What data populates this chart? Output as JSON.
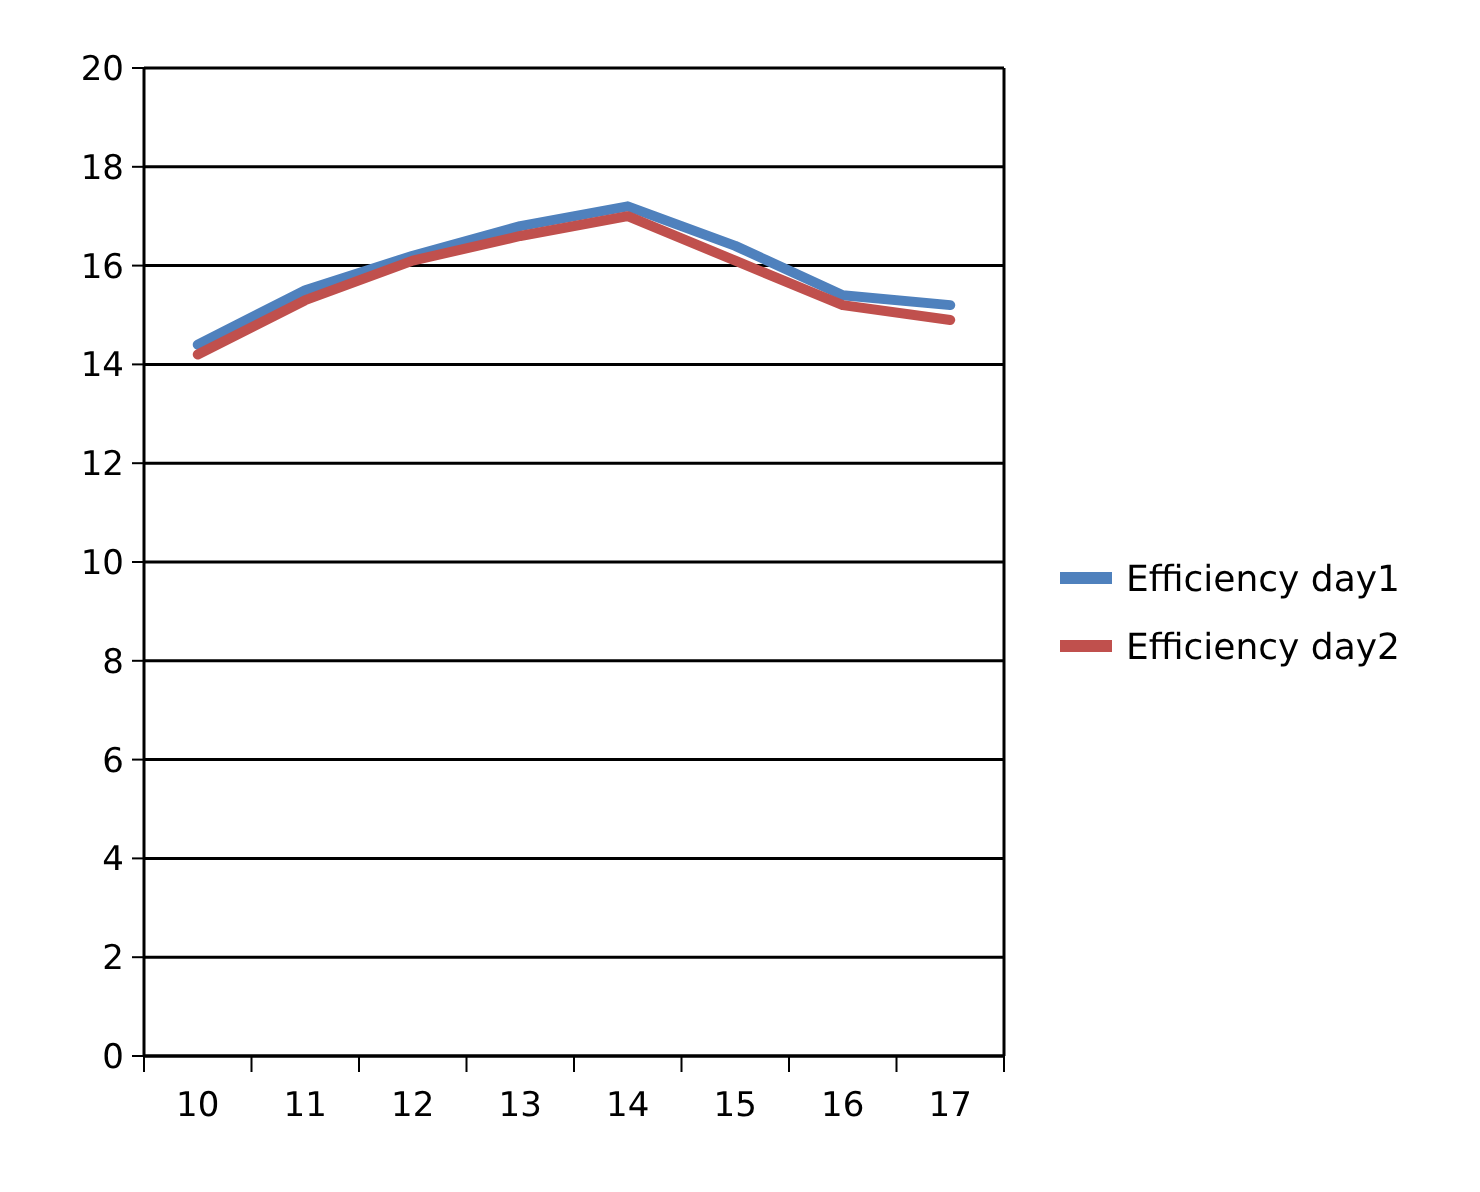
{
  "chart_data": {
    "type": "line",
    "categories": [
      "10",
      "11",
      "12",
      "13",
      "14",
      "15",
      "16",
      "17"
    ],
    "series": [
      {
        "name": "Efficiency day1",
        "color": "#4f81bd",
        "values": [
          14.4,
          15.5,
          16.2,
          16.8,
          17.2,
          16.4,
          15.4,
          15.2
        ]
      },
      {
        "name": "Efficiency day2",
        "color": "#c0504d",
        "values": [
          14.2,
          15.3,
          16.1,
          16.6,
          17.0,
          16.1,
          15.2,
          14.9
        ]
      }
    ],
    "ylim": [
      0,
      20
    ],
    "yticks": [
      0,
      2,
      4,
      6,
      8,
      10,
      12,
      14,
      16,
      18,
      20
    ],
    "grid": "y",
    "legend": "right",
    "marker": "none",
    "line_style": "solid"
  }
}
